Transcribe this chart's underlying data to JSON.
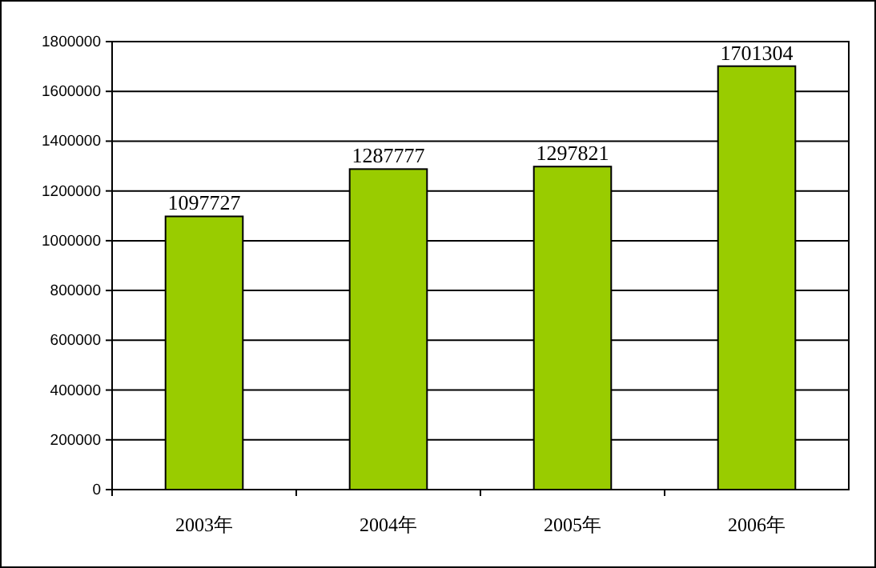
{
  "chart_data": {
    "type": "bar",
    "categories": [
      "2003年",
      "2004年",
      "2005年",
      "2006年"
    ],
    "values": [
      1097727,
      1287777,
      1297821,
      1701304
    ],
    "color": "#99cc00",
    "ylim": [
      0,
      1800000
    ],
    "yticks": [
      0,
      200000,
      400000,
      600000,
      800000,
      1000000,
      1200000,
      1400000,
      1600000,
      1800000
    ],
    "grid": "y",
    "data_labels": true
  }
}
